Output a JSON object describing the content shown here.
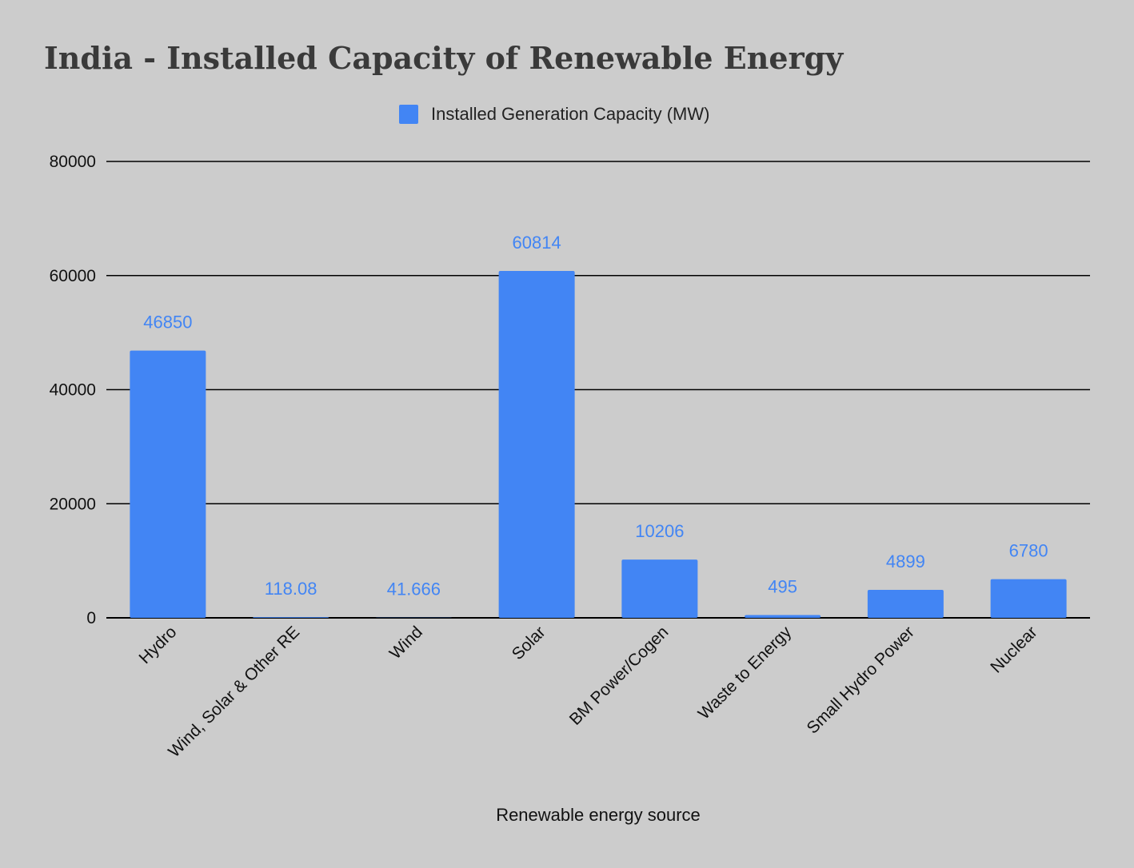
{
  "chart_data": {
    "type": "bar",
    "title": "India - Installed Capacity of Renewable Energy",
    "xlabel": "Renewable energy source",
    "ylabel": "",
    "ylim": [
      0,
      80000
    ],
    "yticks": [
      0,
      20000,
      40000,
      60000,
      80000
    ],
    "grid": true,
    "legend_position": "top",
    "colors": {
      "bar": "#4285f4",
      "grid": "#000000",
      "background": "#cccccc"
    },
    "categories": [
      "Hydro",
      "Wind, Solar & Other RE",
      "Wind",
      "Solar",
      "BM Power/Cogen",
      "Waste to Energy",
      "Small Hydro Power",
      "Nuclear"
    ],
    "series": [
      {
        "name": "Installed Generation Capacity (MW)",
        "values": [
          46850,
          118.08,
          41.666,
          60814,
          10206,
          495,
          4899,
          6780
        ],
        "labels": [
          "46850",
          "118.08",
          "41.666",
          "60814",
          "10206",
          "495",
          "4899",
          "6780"
        ]
      }
    ]
  }
}
